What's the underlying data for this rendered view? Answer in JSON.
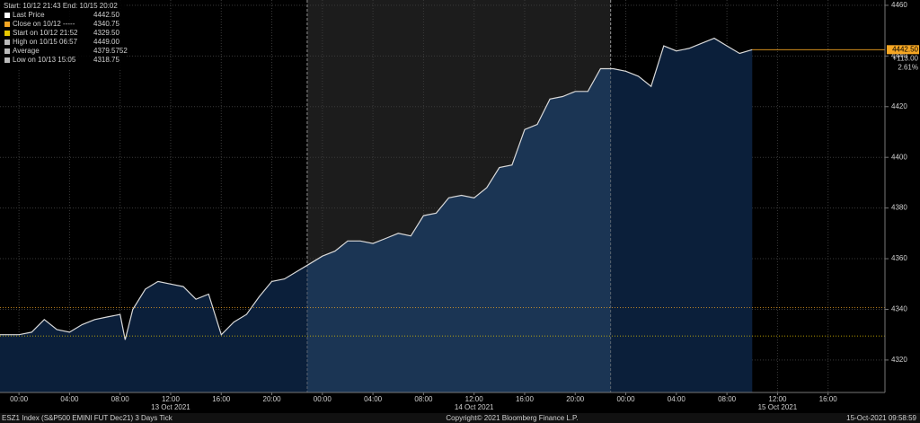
{
  "chart_data": {
    "type": "area",
    "header": "Start: 10/12 21:43  End: 10/15 20:02",
    "legend": [
      {
        "label": "Last Price",
        "value": "4442.50",
        "color": "#ffffff"
      },
      {
        "label": "Close on 10/12 -----",
        "value": "4340.75",
        "color": "#f5a623"
      },
      {
        "label": "Start on 10/12 21:52",
        "value": "4329.50",
        "color": "#e8c800"
      },
      {
        "label": "High on 10/15 06:57",
        "value": "4449.00",
        "color": "#bbbbbb"
      },
      {
        "label": "Average",
        "value": "4379.5752",
        "color": "#bbbbbb"
      },
      {
        "label": "Low on 10/13 15:05",
        "value": "4318.75",
        "color": "#bbbbbb"
      }
    ],
    "x": [
      -1.5,
      0,
      1,
      2,
      3,
      4,
      5,
      6,
      7,
      8,
      8.4,
      9,
      10,
      11,
      12,
      13,
      14,
      15,
      16,
      17,
      18,
      19,
      20,
      21,
      22,
      23,
      24,
      25,
      26,
      27,
      28,
      29,
      30,
      31,
      32,
      33,
      34,
      35,
      36,
      37,
      38,
      39,
      40,
      41,
      42,
      43,
      44,
      45,
      46,
      47,
      48,
      49,
      50,
      51,
      52,
      53,
      54,
      55,
      56,
      57,
      58
    ],
    "series": [
      {
        "name": "Last Price",
        "color": "#d9d9d9",
        "values": [
          4330,
          4330,
          4331,
          4336,
          4332,
          4331,
          4334,
          4336,
          4337,
          4338,
          4328,
          4340,
          4348,
          4351,
          4350,
          4349,
          4344,
          4346,
          4330,
          4335,
          4338,
          4345,
          4351,
          4352,
          4355,
          4358,
          4361,
          4363,
          4367,
          4367,
          4366,
          4368,
          4370,
          4369,
          4377,
          4378,
          4384,
          4385,
          4384,
          4388,
          4396,
          4397,
          4411,
          4413,
          4423,
          4424,
          4426,
          4426,
          4435,
          4435,
          4434,
          4432,
          4428,
          4444,
          4442,
          4443,
          4445,
          4447,
          4444,
          4441,
          4442.5
        ]
      }
    ],
    "reference_lines": [
      {
        "value": 4340.75,
        "color": "#f5a623"
      },
      {
        "value": 4329.5,
        "color": "#e8c800"
      },
      {
        "value": 4442.5,
        "color": "#f5a623"
      }
    ],
    "last_labels": [
      "4442.50",
      "+113.00",
      "2.61%"
    ],
    "xlim": [
      -1.5,
      68.5
    ],
    "ylim": [
      4307.2,
      4462.1
    ],
    "yticks": [
      4320,
      4340,
      4360,
      4380,
      4400,
      4420,
      4440,
      4460
    ],
    "xticks": [
      {
        "value": 0,
        "label": "00:00"
      },
      {
        "value": 4,
        "label": "04:00"
      },
      {
        "value": 8,
        "label": "08:00"
      },
      {
        "value": 12,
        "label": "12:00"
      },
      {
        "value": 16,
        "label": "16:00"
      },
      {
        "value": 20,
        "label": "20:00"
      },
      {
        "value": 24,
        "label": "00:00"
      },
      {
        "value": 28,
        "label": "04:00"
      },
      {
        "value": 32,
        "label": "08:00"
      },
      {
        "value": 36,
        "label": "12:00"
      },
      {
        "value": 40,
        "label": "16:00"
      },
      {
        "value": 44,
        "label": "20:00"
      },
      {
        "value": 48,
        "label": "00:00"
      },
      {
        "value": 52,
        "label": "04:00"
      },
      {
        "value": 56,
        "label": "08:00"
      },
      {
        "value": 60,
        "label": "12:00"
      },
      {
        "value": 64,
        "label": "16:00"
      }
    ],
    "day_labels": [
      {
        "value": 12,
        "label": "13 Oct 2021"
      },
      {
        "value": 36,
        "label": "14 Oct 2021"
      },
      {
        "value": 60,
        "label": "15 Oct 2021"
      }
    ],
    "footer_left": "ESZ1 Index (S&P500 EMINI FUT  Dec21) 3 Days  Tick",
    "footer_center": "Copyright© 2021 Bloomberg Finance L.P.",
    "footer_right": "15-Oct-2021 09:58:59",
    "grid": true
  }
}
